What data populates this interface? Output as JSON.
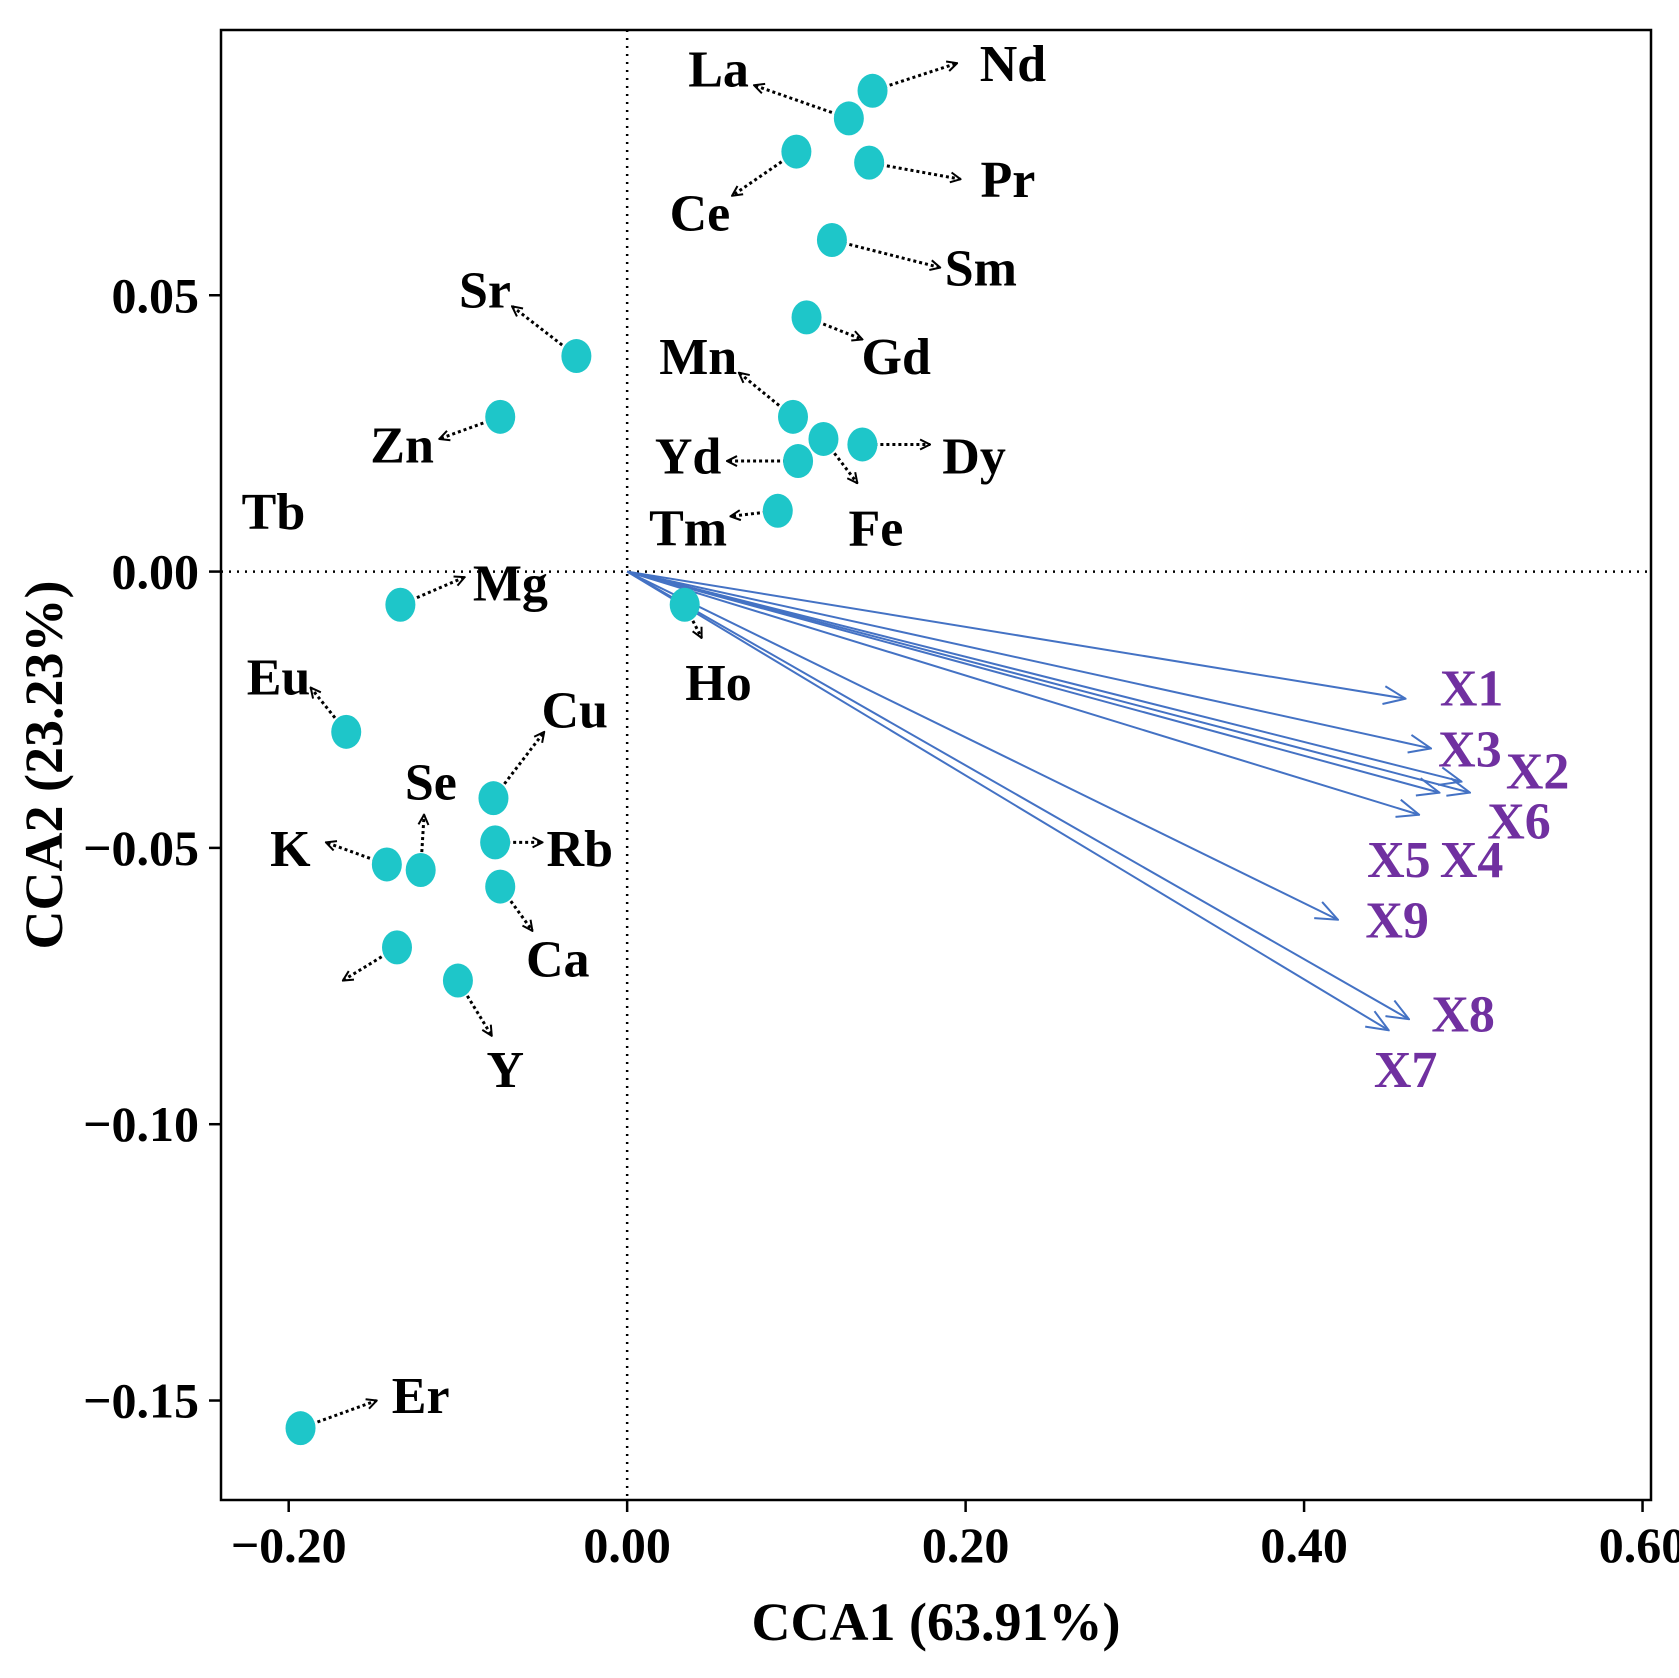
{
  "chart_data": {
    "type": "scatter",
    "title": "",
    "xlabel": "CCA1 (63.91%)",
    "ylabel": "CCA2 (23.23%)",
    "xlim": [
      -0.24,
      0.605
    ],
    "ylim": [
      -0.168,
      0.098
    ],
    "x_ticks": [
      -0.2,
      0.0,
      0.2,
      0.4,
      0.6
    ],
    "x_tick_labels": [
      "−0.20",
      "0.00",
      "0.20",
      "0.40",
      "0.60"
    ],
    "y_ticks": [
      0.05,
      0.0,
      -0.05,
      -0.1,
      -0.15
    ],
    "y_tick_labels": [
      "0.05",
      "0.00",
      "−0.05",
      "−0.10",
      "−0.15"
    ],
    "reference_lines": {
      "x": 0,
      "y": 0,
      "style": "dotted"
    },
    "colors": {
      "point": "#1ec6c9",
      "env_arrow": "#4472c4",
      "env_label": "#7030a0",
      "species_arrow": "#000000",
      "axis": "#000000"
    },
    "species": [
      {
        "name": "La",
        "x": 0.131,
        "y": 0.082,
        "label_x": 0.054,
        "label_y": 0.091,
        "arrow_to": [
          0.075,
          0.088
        ]
      },
      {
        "name": "Nd",
        "x": 0.145,
        "y": 0.087,
        "label_x": 0.228,
        "label_y": 0.092,
        "arrow_to": [
          0.195,
          0.092
        ]
      },
      {
        "name": "Ce",
        "x": 0.1,
        "y": 0.076,
        "label_x": 0.043,
        "label_y": 0.065,
        "arrow_to": [
          0.062,
          0.068
        ]
      },
      {
        "name": "Pr",
        "x": 0.143,
        "y": 0.074,
        "label_x": 0.225,
        "label_y": 0.071,
        "arrow_to": [
          0.197,
          0.071
        ]
      },
      {
        "name": "Sm",
        "x": 0.121,
        "y": 0.06,
        "label_x": 0.209,
        "label_y": 0.055,
        "arrow_to": [
          0.185,
          0.055
        ]
      },
      {
        "name": "Gd",
        "x": 0.106,
        "y": 0.046,
        "label_x": 0.159,
        "label_y": 0.039,
        "arrow_to": [
          0.139,
          0.042
        ]
      },
      {
        "name": "Sr",
        "x": -0.03,
        "y": 0.039,
        "label_x": -0.084,
        "label_y": 0.051,
        "arrow_to": [
          -0.068,
          0.048
        ]
      },
      {
        "name": "Mn",
        "x": 0.098,
        "y": 0.028,
        "label_x": 0.042,
        "label_y": 0.039,
        "arrow_to": [
          0.066,
          0.036
        ]
      },
      {
        "name": "Zn",
        "x": -0.075,
        "y": 0.028,
        "label_x": -0.133,
        "label_y": 0.023,
        "arrow_to": [
          -0.111,
          0.024
        ]
      },
      {
        "name": "Dy",
        "x": 0.139,
        "y": 0.023,
        "label_x": 0.205,
        "label_y": 0.021,
        "arrow_to": [
          0.179,
          0.023
        ]
      },
      {
        "name": "Fe",
        "x": 0.116,
        "y": 0.024,
        "label_x": 0.147,
        "label_y": 0.008,
        "arrow_to": [
          0.136,
          0.016
        ]
      },
      {
        "name": "Yd",
        "x": 0.101,
        "y": 0.02,
        "label_x": 0.036,
        "label_y": 0.021,
        "arrow_to": [
          0.059,
          0.02
        ]
      },
      {
        "name": "Tm",
        "x": 0.089,
        "y": 0.011,
        "label_x": 0.036,
        "label_y": 0.008,
        "arrow_to": [
          0.061,
          0.01
        ]
      },
      {
        "name": "Tb",
        "x": null,
        "y": null,
        "label_x": -0.209,
        "label_y": 0.011,
        "arrow_to": null
      },
      {
        "name": "Mg",
        "x": -0.134,
        "y": -0.006,
        "label_x": -0.069,
        "label_y": -0.002,
        "arrow_to": [
          -0.096,
          -0.001
        ]
      },
      {
        "name": "Ho",
        "x": 0.034,
        "y": -0.006,
        "label_x": 0.054,
        "label_y": -0.02,
        "arrow_to": [
          0.044,
          -0.012
        ]
      },
      {
        "name": "Eu",
        "x": -0.166,
        "y": -0.029,
        "label_x": -0.206,
        "label_y": -0.019,
        "arrow_to": [
          -0.187,
          -0.021
        ]
      },
      {
        "name": "Cu",
        "x": -0.079,
        "y": -0.041,
        "label_x": -0.031,
        "label_y": -0.025,
        "arrow_to": [
          -0.049,
          -0.029
        ]
      },
      {
        "name": "Se",
        "x": -0.122,
        "y": -0.054,
        "label_x": -0.116,
        "label_y": -0.038,
        "arrow_to": [
          -0.12,
          -0.044
        ]
      },
      {
        "name": "K",
        "x": -0.142,
        "y": -0.053,
        "label_x": -0.199,
        "label_y": -0.05,
        "arrow_to": [
          -0.178,
          -0.049
        ]
      },
      {
        "name": "Rb",
        "x": -0.078,
        "y": -0.049,
        "label_x": -0.028,
        "label_y": -0.05,
        "arrow_to": [
          -0.05,
          -0.049
        ]
      },
      {
        "name": "Ca",
        "x": -0.075,
        "y": -0.057,
        "label_x": -0.041,
        "label_y": -0.07,
        "arrow_to": [
          -0.056,
          -0.065
        ]
      },
      {
        "name": "",
        "x": -0.136,
        "y": -0.068,
        "label_x": null,
        "label_y": null,
        "arrow_to": [
          -0.168,
          -0.074
        ]
      },
      {
        "name": "Y",
        "x": -0.1,
        "y": -0.074,
        "label_x": -0.072,
        "label_y": -0.09,
        "arrow_to": [
          -0.08,
          -0.084
        ]
      },
      {
        "name": "Er",
        "x": -0.193,
        "y": -0.155,
        "label_x": -0.122,
        "label_y": -0.149,
        "arrow_to": [
          -0.148,
          -0.15
        ]
      }
    ],
    "environment": [
      {
        "name": "X1",
        "x": 0.46,
        "y": -0.023,
        "label_x": 0.499,
        "label_y": -0.021
      },
      {
        "name": "X3",
        "x": 0.475,
        "y": -0.032,
        "label_x": 0.498,
        "label_y": -0.032
      },
      {
        "name": "X2",
        "x": 0.498,
        "y": -0.04,
        "label_x": 0.538,
        "label_y": -0.036
      },
      {
        "name": "X6",
        "x": 0.493,
        "y": -0.038,
        "label_x": 0.527,
        "label_y": -0.045
      },
      {
        "name": "X5",
        "x": 0.468,
        "y": -0.044,
        "label_x": 0.456,
        "label_y": -0.052
      },
      {
        "name": "X4",
        "x": 0.48,
        "y": -0.04,
        "label_x": 0.499,
        "label_y": -0.052
      },
      {
        "name": "X9",
        "x": 0.42,
        "y": -0.063,
        "label_x": 0.455,
        "label_y": -0.063
      },
      {
        "name": "X8",
        "x": 0.462,
        "y": -0.081,
        "label_x": 0.494,
        "label_y": -0.08
      },
      {
        "name": "X7",
        "x": 0.45,
        "y": -0.083,
        "label_x": 0.46,
        "label_y": -0.09
      }
    ]
  }
}
